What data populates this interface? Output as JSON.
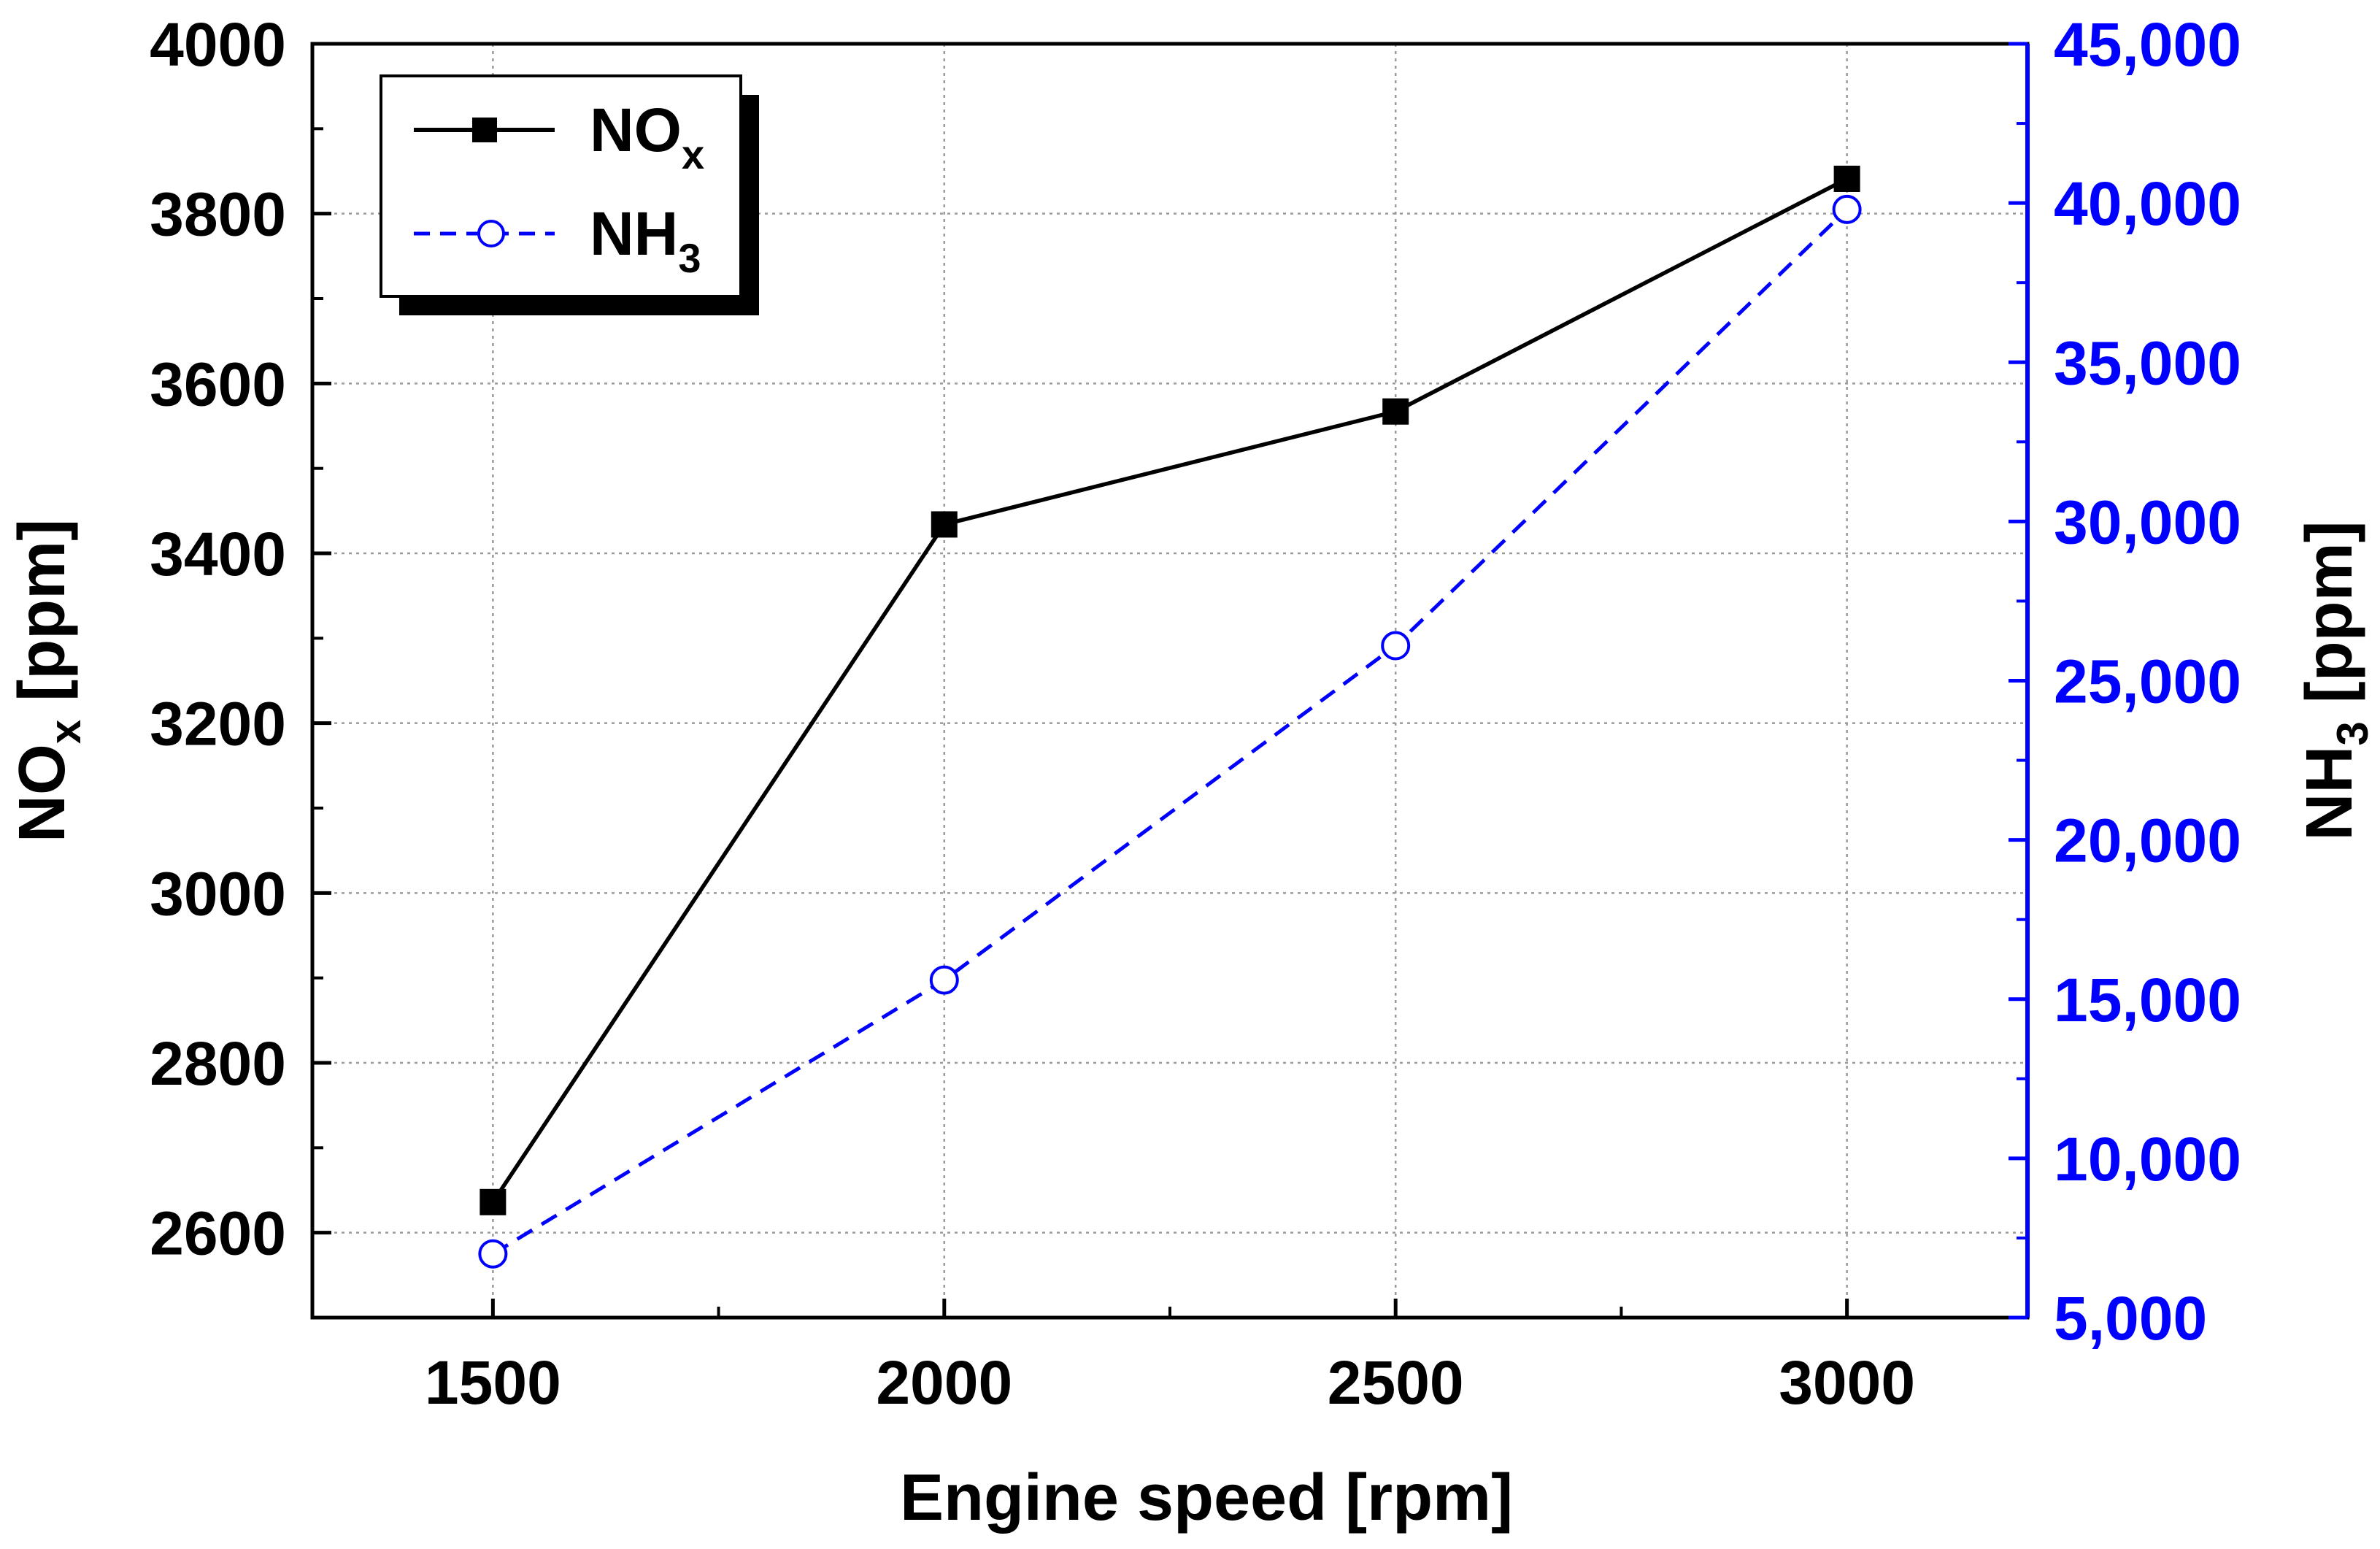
{
  "chart_data": {
    "type": "line",
    "title": "",
    "xlabel": "Engine speed [rpm]",
    "ylabel": {
      "main": "NO",
      "sub": "x",
      "unit": " [ppm]"
    },
    "y2label": {
      "main": "NH",
      "sub": "3",
      "unit": " [ppm]"
    },
    "xlim": [
      1300,
      3200
    ],
    "ylim": [
      2500,
      4000
    ],
    "y2lim": [
      5000,
      45000
    ],
    "x_ticks": [
      1500,
      2000,
      2500,
      3000
    ],
    "x_minor_ticks": [
      1750,
      2250,
      2750
    ],
    "y_ticks": [
      2600,
      2800,
      3000,
      3200,
      3400,
      3600,
      3800,
      4000
    ],
    "y_tick_labels": [
      "2600",
      "2800",
      "3000",
      "3200",
      "3400",
      "3600",
      "3800",
      "4000"
    ],
    "y_minor_ticks": [
      2500,
      2700,
      2900,
      3100,
      3300,
      3500,
      3700,
      3900
    ],
    "y2_ticks": [
      5000,
      10000,
      15000,
      20000,
      25000,
      30000,
      35000,
      40000,
      45000
    ],
    "y2_tick_labels": [
      "5,000",
      "10,000",
      "15,000",
      "20,000",
      "25,000",
      "30,000",
      "35,000",
      "40,000",
      "45,000"
    ],
    "y2_minor_ticks": [
      7500,
      12500,
      17500,
      22500,
      27500,
      32500,
      37500,
      42500
    ],
    "grid": true,
    "legend_position": "top-left",
    "x": [
      1500,
      2000,
      2500,
      3000
    ],
    "series": [
      {
        "name": "NOx",
        "label_main": "NO",
        "label_sub": "x",
        "axis": "left",
        "values": [
          2636,
          3434,
          3567,
          3841
        ],
        "color": "#000000",
        "marker": "filled-square",
        "line": "solid"
      },
      {
        "name": "NH3",
        "label_main": "NH",
        "label_sub": "3",
        "axis": "right",
        "values": [
          7000,
          15600,
          26100,
          39800
        ],
        "color": "#0000ff",
        "marker": "open-circle",
        "line": "dashed"
      }
    ],
    "colors": {
      "left_axis": "#000000",
      "right_axis": "#0000ff",
      "grid": "#9a9a9a"
    }
  }
}
